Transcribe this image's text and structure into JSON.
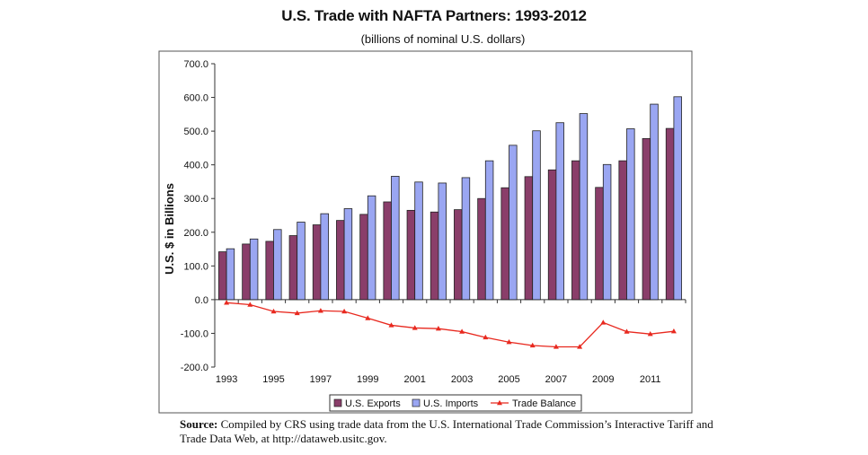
{
  "header": {
    "title": "U.S. Trade with NAFTA Partners: 1993-2012",
    "subtitle": "(billions of nominal U.S. dollars)"
  },
  "footer": {
    "source_label": "Source:",
    "source_text": "Compiled by CRS using trade data from the U.S. International Trade Commission’s Interactive Tariff and Trade Data Web, at http://dataweb.usitc.gov."
  },
  "chart_data": {
    "type": "bar",
    "title": "U.S. Trade with NAFTA Partners: 1993-2012",
    "subtitle": "(billions of nominal U.S. dollars)",
    "xlabel": "",
    "ylabel": "U.S. $ in Billions",
    "ylim": [
      -200,
      700
    ],
    "yticks": [
      700,
      600,
      500,
      400,
      300,
      200,
      100,
      0,
      -100,
      -200
    ],
    "ytick_labels": [
      "700.0",
      "600.0",
      "500.0",
      "400.0",
      "300.0",
      "200.0",
      "100.0",
      "0.0",
      "-100.0",
      "-200.0"
    ],
    "categories": [
      "1993",
      "1994",
      "1995",
      "1996",
      "1997",
      "1998",
      "1999",
      "2000",
      "2001",
      "2002",
      "2003",
      "2004",
      "2005",
      "2006",
      "2007",
      "2008",
      "2009",
      "2010",
      "2011",
      "2012"
    ],
    "xtick_labels": [
      "1993",
      "1995",
      "1997",
      "1999",
      "2001",
      "2003",
      "2005",
      "2007",
      "2009",
      "2011"
    ],
    "series": [
      {
        "name": "U.S. Exports",
        "kind": "bar",
        "color": "#8a3e6a",
        "values": [
          142,
          165,
          173,
          190,
          222,
          235,
          253,
          290,
          265,
          260,
          267,
          300,
          332,
          365,
          385,
          412,
          333,
          412,
          478,
          508
        ]
      },
      {
        "name": "U.S. Imports",
        "kind": "bar",
        "color": "#9aa6f2",
        "values": [
          151,
          180,
          208,
          230,
          255,
          270,
          308,
          366,
          349,
          346,
          362,
          412,
          458,
          501,
          525,
          552,
          401,
          507,
          580,
          602
        ]
      },
      {
        "name": "Trade Balance",
        "kind": "line",
        "color": "#e8291f",
        "values": [
          -9,
          -15,
          -35,
          -40,
          -33,
          -35,
          -55,
          -76,
          -84,
          -86,
          -95,
          -112,
          -126,
          -136,
          -140,
          -140,
          -68,
          -95,
          -102,
          -94
        ]
      }
    ],
    "legend": {
      "position": "bottom",
      "items": [
        "U.S. Exports",
        "U.S. Imports",
        "Trade Balance"
      ]
    },
    "grid": false
  }
}
